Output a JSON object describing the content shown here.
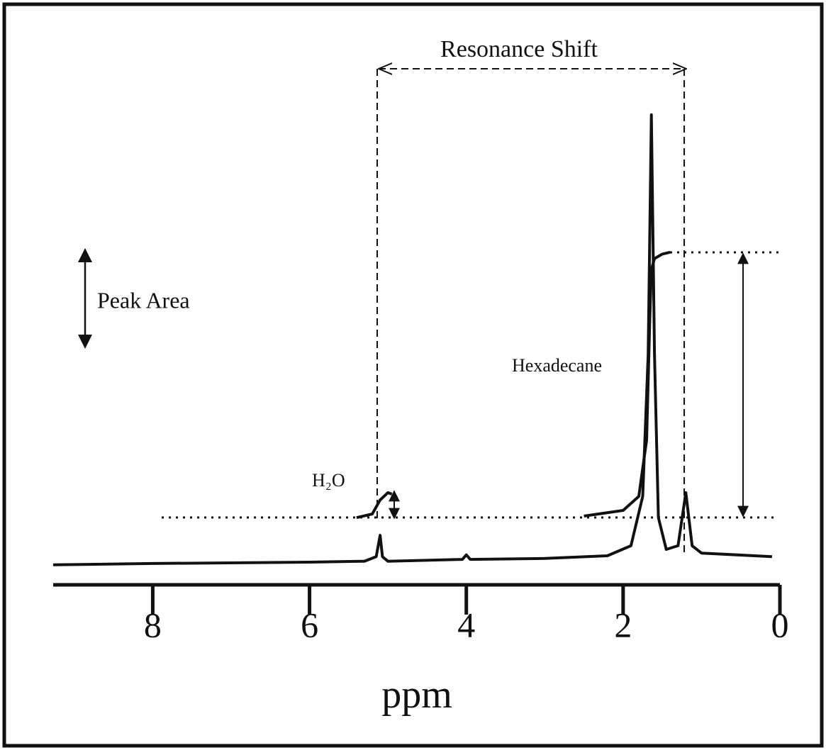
{
  "chart_data": {
    "type": "line",
    "xlabel": "ppm",
    "xlim": [
      9.27,
      0
    ],
    "xticks": [
      8,
      6,
      4,
      2,
      0
    ],
    "ylim": [
      0,
      100
    ],
    "annotations": {
      "resonance_shift": "Resonance Shift",
      "peak_area": "Peak Area",
      "hexadecane": "Hexadecane",
      "water": "H₂O"
    },
    "series": [
      {
        "color": "#111111",
        "x": [
          9.27,
          8,
          6,
          5.3,
          5.15,
          5.1,
          5.07,
          5.0,
          4.05,
          4.0,
          3.95,
          3.0,
          2.2,
          1.9,
          1.75,
          1.68,
          1.64,
          1.6,
          1.55,
          1.45,
          1.3,
          1.2,
          1.12,
          1.0,
          0.1
        ],
        "values": [
          0.5,
          0.8,
          1.1,
          1.3,
          2.3,
          7,
          2.3,
          1.3,
          1.7,
          2.7,
          1.7,
          1.9,
          2.5,
          4.7,
          15.6,
          46.9,
          99.7,
          46.9,
          10.9,
          3.9,
          4.7,
          16.4,
          4.7,
          3.1,
          2.3
        ]
      },
      {
        "color": "#111111",
        "x": [
          5.4,
          5.2,
          5.1,
          5.0,
          4.95
        ],
        "values": [
          10.9,
          11.7,
          14.8,
          16.4,
          16.1
        ]
      },
      {
        "color": "#111111",
        "x": [
          2.5,
          2.0,
          1.8,
          1.7,
          1.66,
          1.64,
          1.6,
          1.5,
          1.4
        ],
        "values": [
          11.25,
          12.5,
          15.6,
          28,
          54.7,
          65.6,
          68,
          69,
          69.4
        ]
      }
    ]
  }
}
